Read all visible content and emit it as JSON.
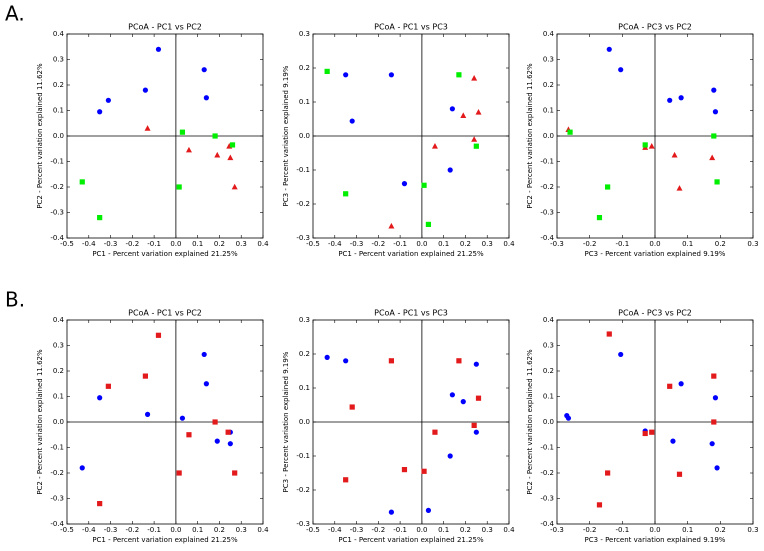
{
  "panel_labels": [
    "A.",
    "B."
  ],
  "chart_data": [
    {
      "type": "scatter",
      "title": "PCoA - PC1 vs PC2",
      "xlabel": "PC1 - Percent variation explained 21.25%",
      "ylabel": "PC2 - Percent variation explained 11.62%",
      "xlim": [
        -0.5,
        0.4
      ],
      "ylim": [
        -0.4,
        0.4
      ],
      "xticks": [
        -0.5,
        -0.4,
        -0.3,
        -0.2,
        -0.1,
        {
          "value": 0,
          "label": "0.0"
        },
        0.1,
        0.2,
        0.3,
        0.4
      ],
      "yticks": [
        -0.4,
        -0.3,
        -0.2,
        -0.1,
        {
          "value": 0,
          "label": "0.0"
        },
        0.1,
        0.2,
        0.3,
        0.4
      ],
      "series": [
        {
          "color": "#0000ff",
          "marker": "circle",
          "x": [
            -0.08,
            -0.31,
            -0.35,
            -0.14,
            0.13,
            0.14
          ],
          "y": [
            0.34,
            0.14,
            0.095,
            0.18,
            0.26,
            0.15
          ]
        },
        {
          "color": "#e31a1c",
          "marker": "triangle",
          "x": [
            -0.13,
            0.06,
            0.19,
            0.25,
            0.27,
            0.245
          ],
          "y": [
            0.03,
            -0.055,
            -0.075,
            -0.085,
            -0.2,
            -0.04
          ]
        },
        {
          "color": "#00ee00",
          "marker": "square",
          "x": [
            -0.43,
            -0.35,
            0.03,
            0.18,
            0.26,
            0.015
          ],
          "y": [
            -0.18,
            -0.32,
            0.015,
            0.0,
            -0.035,
            -0.2
          ]
        }
      ]
    },
    {
      "type": "scatter",
      "title": "PCoA - PC1 vs PC3",
      "xlabel": "PC1 - Percent variation explained 21.25%",
      "ylabel": "PC3 - Percent variation explained 9.19%",
      "xlim": [
        -0.5,
        0.4
      ],
      "ylim": [
        -0.3,
        0.3
      ],
      "xticks": [
        -0.5,
        -0.4,
        -0.3,
        -0.2,
        -0.1,
        {
          "value": 0,
          "label": "0.0"
        },
        0.1,
        0.2,
        0.3,
        0.4
      ],
      "yticks": [
        -0.3,
        -0.2,
        -0.1,
        {
          "value": 0,
          "label": "0.0"
        },
        0.1,
        0.2,
        0.3
      ],
      "series": [
        {
          "color": "#0000ff",
          "marker": "circle",
          "x": [
            -0.35,
            -0.14,
            -0.32,
            -0.08,
            0.13,
            0.14
          ],
          "y": [
            0.18,
            0.18,
            0.044,
            -0.14,
            -0.1,
            0.08
          ]
        },
        {
          "color": "#e31a1c",
          "marker": "triangle",
          "x": [
            0.24,
            0.26,
            0.19,
            0.06,
            0.24,
            -0.14
          ],
          "y": [
            0.17,
            0.07,
            0.06,
            -0.03,
            -0.01,
            -0.265
          ]
        },
        {
          "color": "#00ee00",
          "marker": "square",
          "x": [
            -0.435,
            -0.35,
            0.17,
            0.25,
            0.01,
            0.03
          ],
          "y": [
            0.19,
            -0.17,
            0.18,
            -0.03,
            -0.145,
            -0.26
          ]
        }
      ]
    },
    {
      "type": "scatter",
      "title": "PCoA - PC3 vs PC2",
      "xlabel": "PC3 - Percent variation explained 9.19%",
      "ylabel": "PC2 - Percent variation explained 11.62%",
      "xlim": [
        -0.3,
        0.3
      ],
      "ylim": [
        -0.4,
        0.4
      ],
      "xticks": [
        -0.3,
        -0.2,
        -0.1,
        {
          "value": 0,
          "label": "0.0"
        },
        0.1,
        0.2,
        0.3
      ],
      "yticks": [
        -0.4,
        -0.3,
        -0.2,
        -0.1,
        {
          "value": 0,
          "label": "0.0"
        },
        0.1,
        0.2,
        0.3,
        0.4
      ],
      "series": [
        {
          "color": "#0000ff",
          "marker": "circle",
          "x": [
            -0.14,
            -0.105,
            0.045,
            0.08,
            0.18,
            0.185
          ],
          "y": [
            0.34,
            0.26,
            0.14,
            0.15,
            0.18,
            0.095
          ]
        },
        {
          "color": "#e31a1c",
          "marker": "triangle",
          "x": [
            -0.265,
            -0.03,
            -0.01,
            0.06,
            0.075,
            0.175
          ],
          "y": [
            0.025,
            -0.045,
            -0.04,
            -0.075,
            -0.205,
            -0.085
          ]
        },
        {
          "color": "#00ee00",
          "marker": "square",
          "x": [
            -0.26,
            -0.03,
            0.18,
            0.19,
            -0.145,
            -0.17
          ],
          "y": [
            0.015,
            -0.035,
            0.0,
            -0.18,
            -0.2,
            -0.32
          ]
        }
      ]
    },
    {
      "type": "scatter",
      "title": "PCoA - PC1 vs PC2",
      "xlabel": "PC1 - Percent variation explained 21.25%",
      "ylabel": "PC2 - Percent variation explained 11.62%",
      "xlim": [
        -0.5,
        0.4
      ],
      "ylim": [
        -0.4,
        0.4
      ],
      "xticks": [
        -0.5,
        -0.4,
        -0.3,
        -0.2,
        -0.1,
        {
          "value": 0,
          "label": "0.0"
        },
        0.1,
        0.2,
        0.3,
        0.4
      ],
      "yticks": [
        -0.4,
        -0.3,
        -0.2,
        -0.1,
        {
          "value": 0,
          "label": "0.0"
        },
        0.1,
        0.2,
        0.3,
        0.4
      ],
      "series": [
        {
          "color": "#0000ff",
          "marker": "circle",
          "x": [
            -0.35,
            -0.13,
            0.03,
            0.13,
            0.14,
            0.19,
            0.25,
            0.25,
            -0.43
          ],
          "y": [
            0.095,
            0.03,
            0.015,
            0.265,
            0.15,
            -0.075,
            -0.085,
            -0.04,
            -0.18
          ]
        },
        {
          "color": "#e31a1c",
          "marker": "square",
          "x": [
            -0.08,
            -0.31,
            -0.14,
            0.18,
            0.06,
            0.015,
            -0.35,
            0.27,
            0.24
          ],
          "y": [
            0.34,
            0.14,
            0.18,
            0.0,
            -0.05,
            -0.2,
            -0.32,
            -0.2,
            -0.04
          ]
        }
      ]
    },
    {
      "type": "scatter",
      "title": "PCoA - PC1 vs PC3",
      "xlabel": "PC1 - Percent variation explained 21.25%",
      "ylabel": "PC3 - Percent variation explained 9.19%",
      "xlim": [
        -0.5,
        0.4
      ],
      "ylim": [
        -0.3,
        0.3
      ],
      "xticks": [
        -0.5,
        -0.4,
        -0.3,
        -0.2,
        -0.1,
        {
          "value": 0,
          "label": "0.0"
        },
        0.1,
        0.2,
        0.3,
        0.4
      ],
      "yticks": [
        -0.3,
        -0.2,
        -0.1,
        {
          "value": 0,
          "label": "0.0"
        },
        0.1,
        0.2,
        0.3
      ],
      "series": [
        {
          "color": "#0000ff",
          "marker": "circle",
          "x": [
            -0.435,
            -0.35,
            0.14,
            0.19,
            0.25,
            0.25,
            0.13,
            -0.14,
            0.03
          ],
          "y": [
            0.19,
            0.18,
            0.08,
            0.06,
            0.17,
            -0.03,
            -0.1,
            -0.265,
            -0.26
          ]
        },
        {
          "color": "#e31a1c",
          "marker": "square",
          "x": [
            -0.14,
            0.17,
            -0.32,
            0.26,
            0.06,
            0.24,
            -0.08,
            0.01,
            -0.35
          ],
          "y": [
            0.18,
            0.18,
            0.044,
            0.07,
            -0.03,
            -0.01,
            -0.14,
            -0.145,
            -0.17
          ]
        }
      ]
    },
    {
      "type": "scatter",
      "title": "PCoA - PC3 vs PC2",
      "xlabel": "PC3 - Percent variation explained 9.19%",
      "ylabel": "PC2 - Percent variation explained 11.62%",
      "xlim": [
        -0.3,
        0.3
      ],
      "ylim": [
        -0.4,
        0.4
      ],
      "xticks": [
        -0.3,
        -0.2,
        -0.1,
        {
          "value": 0,
          "label": "0.0"
        },
        0.1,
        0.2,
        0.3
      ],
      "yticks": [
        -0.4,
        -0.3,
        -0.2,
        -0.1,
        {
          "value": 0,
          "label": "0.0"
        },
        0.1,
        0.2,
        0.3,
        0.4
      ],
      "series": [
        {
          "color": "#0000ff",
          "marker": "circle",
          "x": [
            -0.27,
            -0.265,
            -0.105,
            -0.03,
            0.08,
            0.185,
            0.055,
            0.175,
            0.19
          ],
          "y": [
            0.025,
            0.015,
            0.265,
            -0.035,
            0.15,
            0.095,
            -0.075,
            -0.085,
            -0.18
          ]
        },
        {
          "color": "#e31a1c",
          "marker": "square",
          "x": [
            -0.14,
            0.045,
            0.18,
            0.18,
            -0.03,
            -0.01,
            -0.145,
            0.075,
            -0.17
          ],
          "y": [
            0.345,
            0.14,
            0.18,
            0.0,
            -0.045,
            -0.04,
            -0.2,
            -0.205,
            -0.325
          ]
        }
      ]
    }
  ]
}
